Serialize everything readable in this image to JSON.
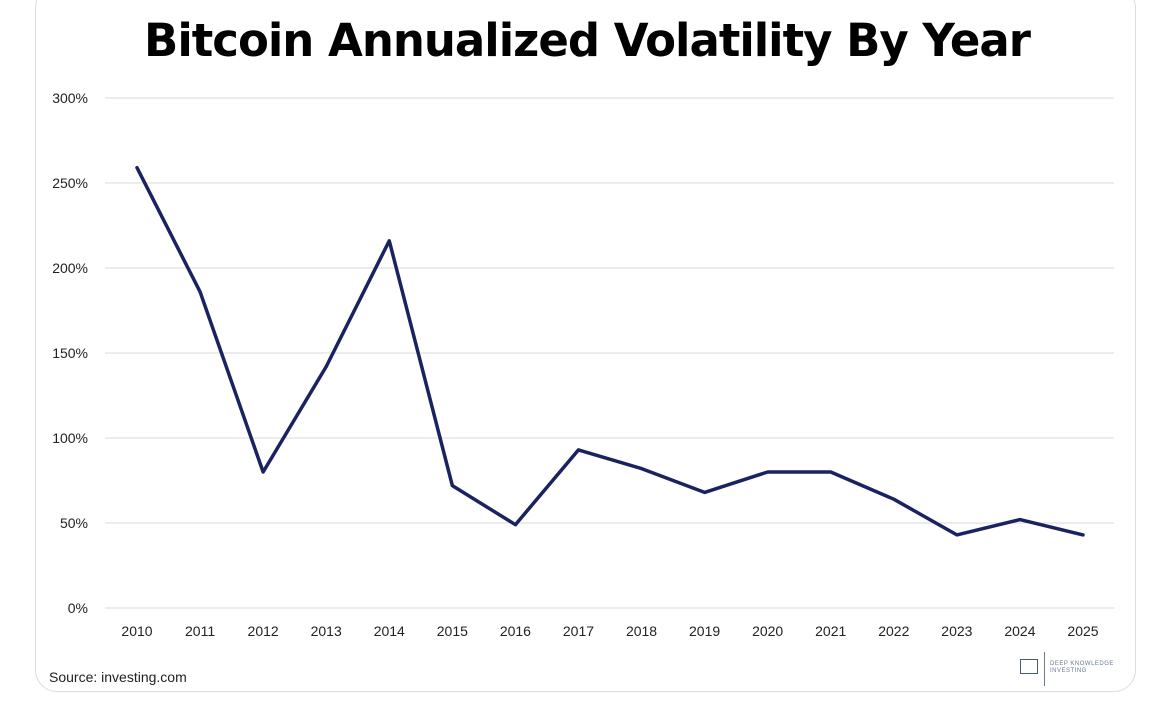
{
  "chart_data": {
    "type": "line",
    "title": "Bitcoin Annualized Volatility By Year",
    "xlabel": "",
    "ylabel": "",
    "categories": [
      "2010",
      "2011",
      "2012",
      "2013",
      "2014",
      "2015",
      "2016",
      "2017",
      "2018",
      "2019",
      "2020",
      "2021",
      "2022",
      "2023",
      "2024",
      "2025"
    ],
    "series": [
      {
        "values": [
          259,
          186,
          80,
          142,
          216,
          72,
          49,
          93,
          82,
          68,
          80,
          80,
          64,
          43,
          52,
          43
        ]
      }
    ],
    "ylim": [
      0,
      300
    ],
    "yticks": [
      0,
      50,
      100,
      150,
      200,
      250,
      300
    ],
    "ytick_labels": [
      "0%",
      "50%",
      "100%",
      "150%",
      "200%",
      "250%",
      "300%"
    ],
    "grid": true,
    "legend": "none",
    "line_color": "#1a2260"
  },
  "footer": {
    "source": "Source: investing.com"
  },
  "logo": {
    "mark": "DKI",
    "line1": "DEEP KNOWLEDGE",
    "line2": "INVESTING"
  },
  "colors": {
    "grid": "#d9d9d9",
    "line": "#1a2260",
    "text": "#222222"
  }
}
